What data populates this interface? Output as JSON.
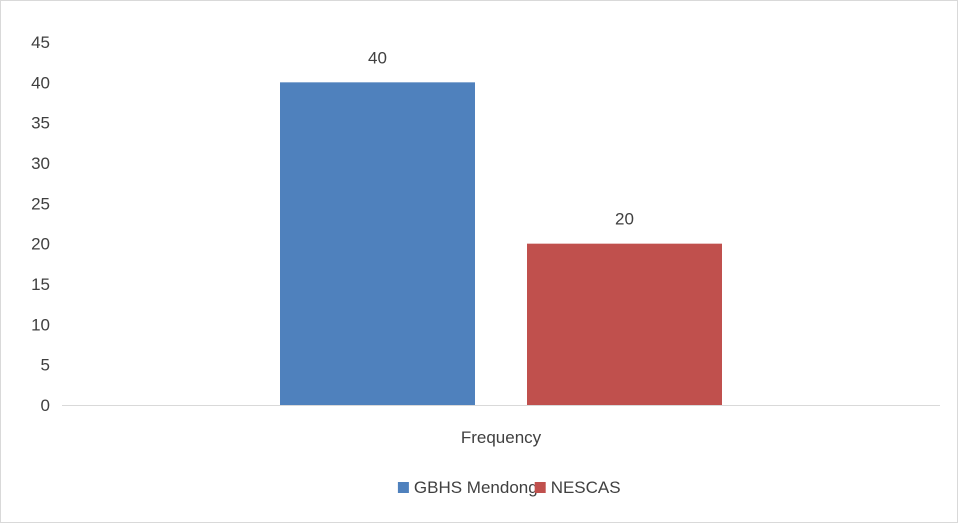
{
  "chart_data": {
    "type": "bar",
    "categories": [
      "Frequency"
    ],
    "series": [
      {
        "name": "GBHS Mendong",
        "values": [
          40
        ],
        "color": "#4F81BD"
      },
      {
        "name": "NESCAS",
        "values": [
          20
        ],
        "color": "#C0504D"
      }
    ],
    "ylim": [
      0,
      45
    ],
    "yticks": [
      0,
      5,
      10,
      15,
      20,
      25,
      30,
      35,
      40,
      45
    ],
    "data_labels": true,
    "grid": false,
    "legend_position": "bottom"
  }
}
